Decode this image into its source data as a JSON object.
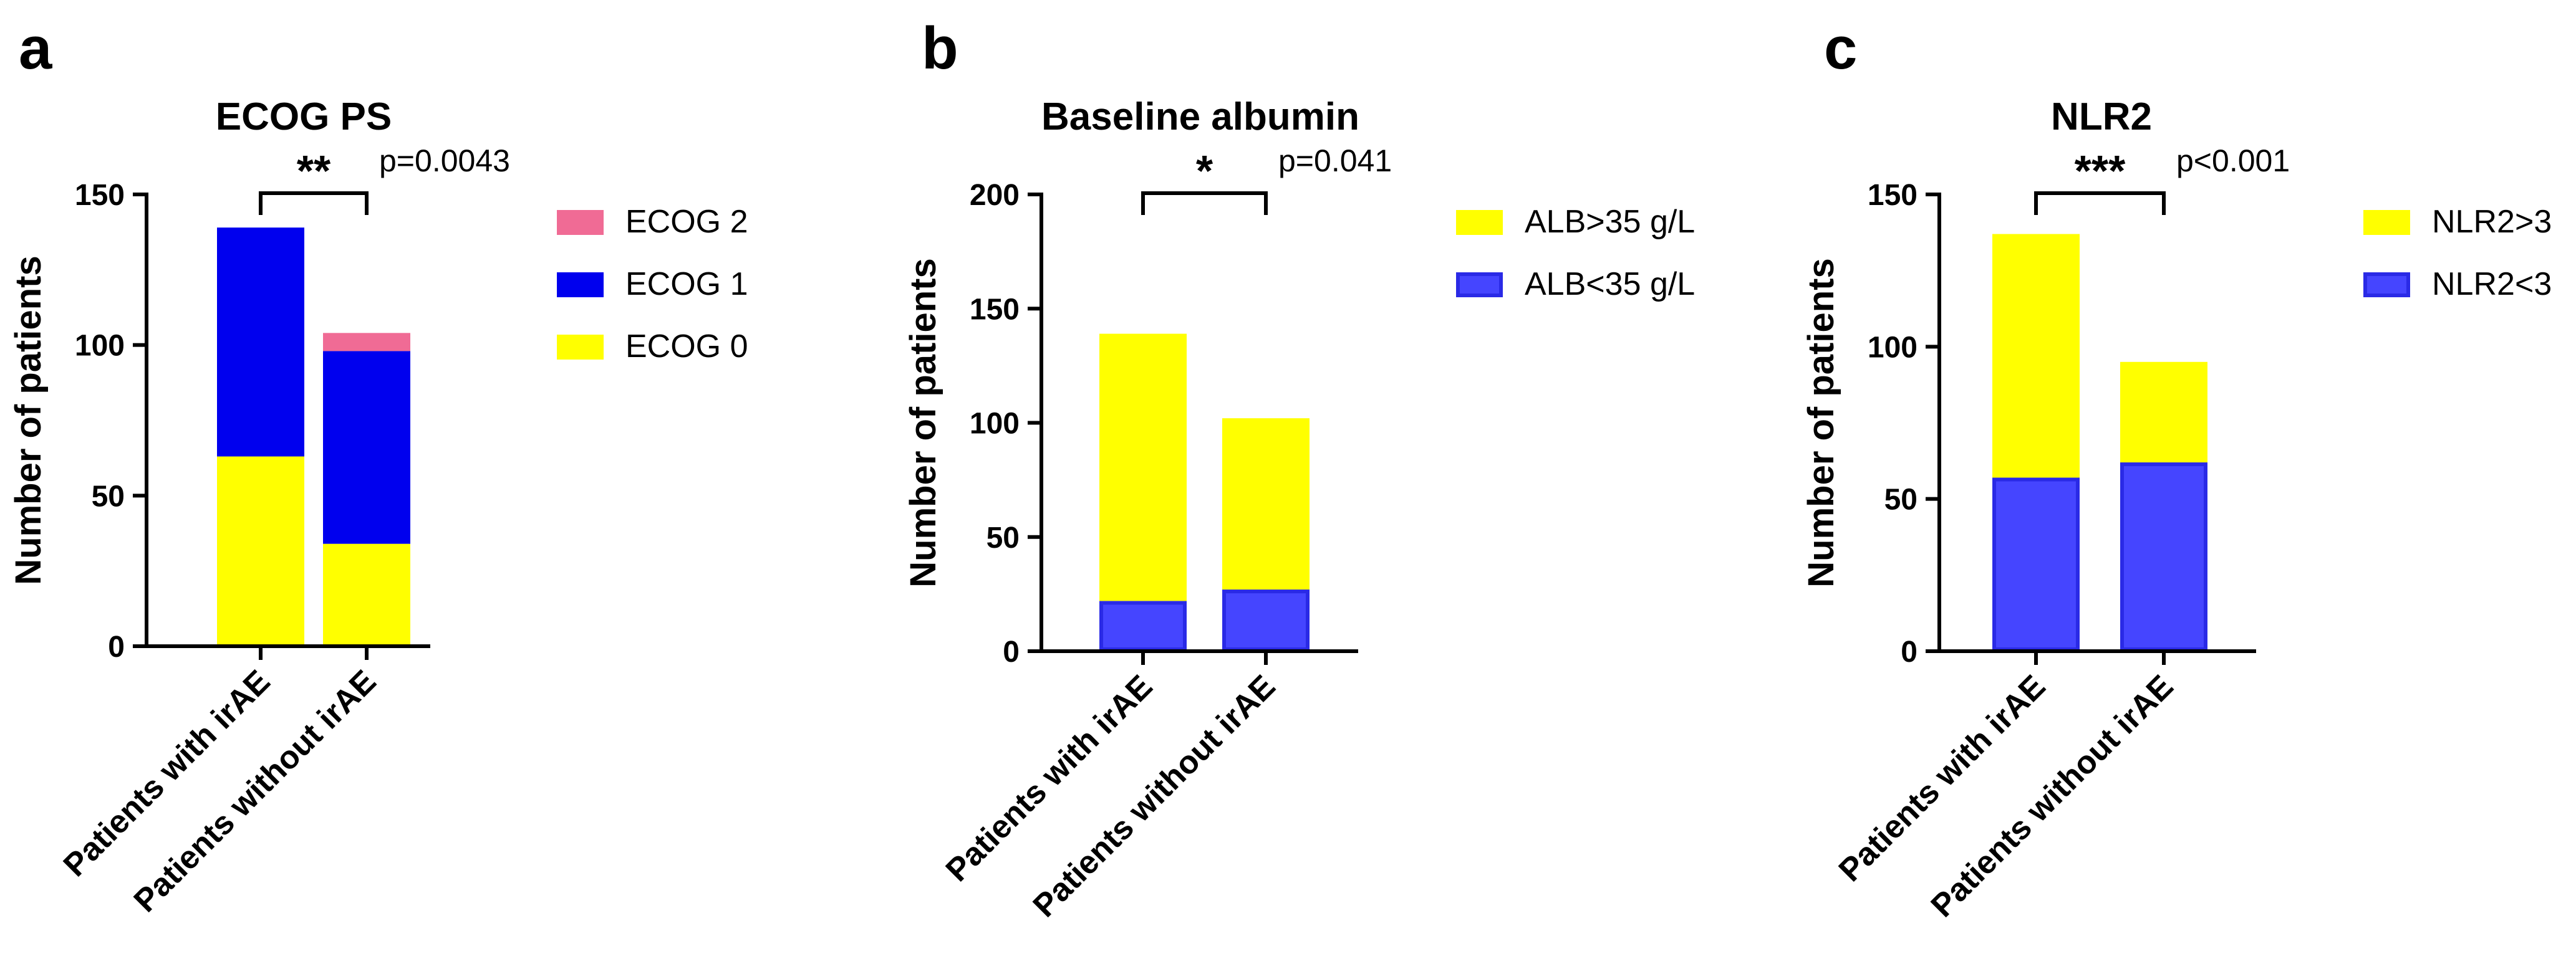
{
  "chart_data": [
    {
      "type": "bar",
      "stacked": true,
      "panel": "a",
      "title": "ECOG PS",
      "ylabel": "Number of patients",
      "xlabel": "",
      "ylim": [
        0,
        150
      ],
      "yticks": [
        0,
        50,
        100,
        150
      ],
      "categories": [
        "Patients with irAE",
        "Patients without irAE"
      ],
      "series": [
        {
          "name": "ECOG 0",
          "color": "#ffff00",
          "outline": "#ffff00",
          "values": [
            63,
            34
          ]
        },
        {
          "name": "ECOG 1",
          "color": "#0000ee",
          "outline": "#0000ee",
          "values": [
            76,
            64
          ]
        },
        {
          "name": "ECOG 2",
          "color": "#f06b95",
          "outline": "#f06b95",
          "values": [
            0,
            6
          ]
        }
      ],
      "legend_order": [
        "ECOG 2",
        "ECOG 1",
        "ECOG 0"
      ],
      "legend_position": "right",
      "significance": {
        "stars": "**",
        "p_text": "p=0.0043"
      },
      "grid": false
    },
    {
      "type": "bar",
      "stacked": true,
      "panel": "b",
      "title": "Baseline albumin",
      "ylabel": "Number of patients",
      "xlabel": "",
      "ylim": [
        0,
        200
      ],
      "yticks": [
        0,
        50,
        100,
        150,
        200
      ],
      "categories": [
        "Patients with irAE",
        "Patients without irAE"
      ],
      "series": [
        {
          "name": "ALB<35 g/L",
          "color": "#4545ff",
          "outline": "#2a2ae6",
          "values": [
            22,
            27
          ]
        },
        {
          "name": "ALB>35 g/L",
          "color": "#ffff00",
          "outline": "#ffff00",
          "values": [
            117,
            75
          ]
        }
      ],
      "legend_order": [
        "ALB>35 g/L",
        "ALB<35 g/L"
      ],
      "legend_position": "right",
      "significance": {
        "stars": "*",
        "p_text": "p=0.041"
      },
      "grid": false
    },
    {
      "type": "bar",
      "stacked": true,
      "panel": "c",
      "title": "NLR2",
      "ylabel": "Number of patients",
      "xlabel": "",
      "ylim": [
        0,
        150
      ],
      "yticks": [
        0,
        50,
        100,
        150
      ],
      "categories": [
        "Patients with irAE",
        "Patients without irAE"
      ],
      "series": [
        {
          "name": "NLR2<3",
          "color": "#4545ff",
          "outline": "#2a2ae6",
          "values": [
            57,
            62
          ]
        },
        {
          "name": "NLR2>3",
          "color": "#ffff00",
          "outline": "#ffff00",
          "values": [
            80,
            33
          ]
        }
      ],
      "legend_order": [
        "NLR2>3",
        "NLR2<3"
      ],
      "legend_position": "right",
      "significance": {
        "stars": "***",
        "p_text": "p<0.001"
      },
      "grid": false
    }
  ]
}
